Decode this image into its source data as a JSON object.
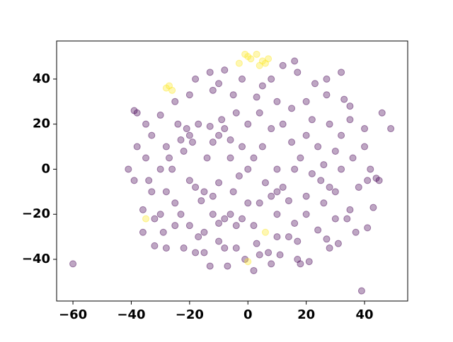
{
  "chart_data": {
    "type": "scatter",
    "xlim": [
      -65.6,
      54.8
    ],
    "ylim": [
      -58.5,
      56.9
    ],
    "xticks": [
      {
        "value": -60,
        "label": "−60"
      },
      {
        "value": -40,
        "label": "−40"
      },
      {
        "value": -20,
        "label": "−20"
      },
      0,
      20,
      40
    ],
    "yticks": [
      {
        "value": -40,
        "label": "−40"
      },
      {
        "value": -20,
        "label": "−20"
      },
      0,
      20,
      40
    ],
    "grid": false,
    "series": [
      {
        "color": "#440154",
        "x": [
          -60,
          39,
          49,
          46,
          45,
          32,
          -41,
          -39,
          -38,
          -39,
          -36,
          -32,
          -28,
          -18,
          -13,
          -8,
          -2,
          12,
          16,
          17,
          23,
          27,
          33,
          35,
          40,
          42,
          44,
          43,
          41,
          37,
          31,
          27,
          21,
          17,
          11,
          7,
          2,
          -1,
          -7,
          -13,
          -18,
          -15,
          -25,
          -30,
          -33,
          -35,
          -33,
          -30,
          -25,
          -20,
          -12,
          -5,
          3,
          10,
          15,
          22,
          28,
          32,
          36,
          38,
          35,
          30,
          24,
          17,
          10,
          3,
          -4,
          -10,
          -17,
          -23,
          -28,
          -30,
          -28,
          -24,
          -20,
          -21,
          -19,
          -23,
          -17,
          -22,
          -10,
          -8,
          -12,
          -6,
          -9,
          -13,
          -15,
          -18,
          -12,
          -16,
          -20,
          -10,
          -8,
          -6,
          -10,
          -4,
          -12,
          10,
          12,
          8,
          6,
          14,
          4,
          25,
          22,
          28,
          20,
          26,
          18,
          0,
          2,
          -3,
          5,
          -2,
          8,
          12,
          15,
          20,
          0,
          -4,
          4,
          -25,
          -26,
          -27,
          -20,
          -15,
          -5,
          0,
          -2,
          2,
          10,
          16,
          20,
          26,
          30,
          32,
          30,
          24,
          16,
          10,
          -32,
          -36,
          -38,
          -35,
          8,
          5,
          -10,
          27,
          20,
          -29,
          -22,
          8,
          18,
          28,
          34,
          41,
          40,
          35,
          -34,
          -6,
          -14,
          14,
          -8,
          4
        ],
        "y": [
          -42,
          -54,
          18,
          25,
          -5,
          43,
          0,
          26,
          25,
          -5,
          -28,
          -34,
          -35,
          40,
          43,
          44,
          40,
          46,
          48,
          43,
          38,
          33,
          31,
          22,
          10,
          0,
          -4,
          -17,
          -26,
          -28,
          -33,
          -31,
          -41,
          -40,
          -38,
          -37,
          -45,
          -40,
          -43,
          -43,
          -37,
          -37,
          -25,
          -20,
          -10,
          5,
          15,
          24,
          30,
          33,
          35,
          33,
          32,
          30,
          27,
          22,
          20,
          15,
          5,
          -8,
          -18,
          -22,
          -27,
          -32,
          -30,
          -33,
          -35,
          -32,
          -30,
          -20,
          -10,
          0,
          10,
          20,
          15,
          18,
          12,
          13,
          20,
          8,
          15,
          18,
          12,
          13,
          22,
          19,
          -10,
          -8,
          -12,
          -14,
          -5,
          -6,
          -22,
          -20,
          -24,
          -25,
          -20,
          -10,
          -8,
          -12,
          -6,
          -14,
          -15,
          -5,
          -2,
          -8,
          -12,
          2,
          5,
          0,
          5,
          -3,
          10,
          10,
          18,
          20,
          12,
          15,
          20,
          25,
          25,
          -15,
          0,
          5,
          -25,
          -28,
          -10,
          -15,
          -22,
          -25,
          -20,
          -24,
          -20,
          -15,
          -10,
          0,
          8,
          10,
          0,
          0,
          -22,
          -18,
          10,
          20,
          40,
          37,
          38,
          40,
          30,
          -28,
          -35,
          -42,
          -42,
          -35,
          -22,
          -5,
          18,
          28,
          -5,
          5,
          5,
          -30,
          -35,
          -38
        ]
      },
      {
        "color": "#fde725",
        "x": [
          0,
          -1,
          1,
          5,
          6,
          7,
          4,
          -27,
          -28,
          -26,
          -35,
          0,
          3,
          -3,
          6
        ],
        "y": [
          50,
          51,
          49,
          48,
          47,
          49,
          46,
          37,
          36,
          35,
          -22,
          -41,
          51,
          47,
          -28
        ]
      }
    ]
  }
}
